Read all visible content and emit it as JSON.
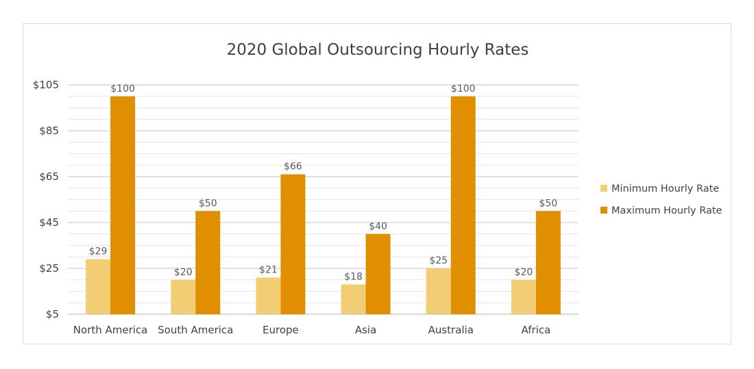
{
  "chart_data": {
    "type": "bar",
    "title": "2020 Global Outsourcing Hourly Rates",
    "xlabel": "",
    "ylabel": "",
    "categories": [
      "North America",
      "South America",
      "Europe",
      "Asia",
      "Australia",
      "Africa"
    ],
    "series": [
      {
        "name": "Minimum Hourly Rate",
        "color": "#f2cd74",
        "values": [
          29,
          20,
          21,
          18,
          25,
          20
        ],
        "labels": [
          "$29",
          "$20",
          "$21",
          "$18",
          "$25",
          "$20"
        ]
      },
      {
        "name": "Maximum Hourly Rate",
        "color": "#e08f00",
        "values": [
          100,
          50,
          66,
          40,
          100,
          50
        ],
        "labels": [
          "$100",
          "$50",
          "$66",
          "$40",
          "$100",
          "$50"
        ]
      }
    ],
    "ylim": [
      5,
      105
    ],
    "y_ticks": [
      5,
      25,
      45,
      65,
      85,
      105
    ],
    "y_tick_labels": [
      "$5",
      "$25",
      "$45",
      "$65",
      "$85",
      "$105"
    ],
    "grid": true,
    "legend_position": "right"
  }
}
